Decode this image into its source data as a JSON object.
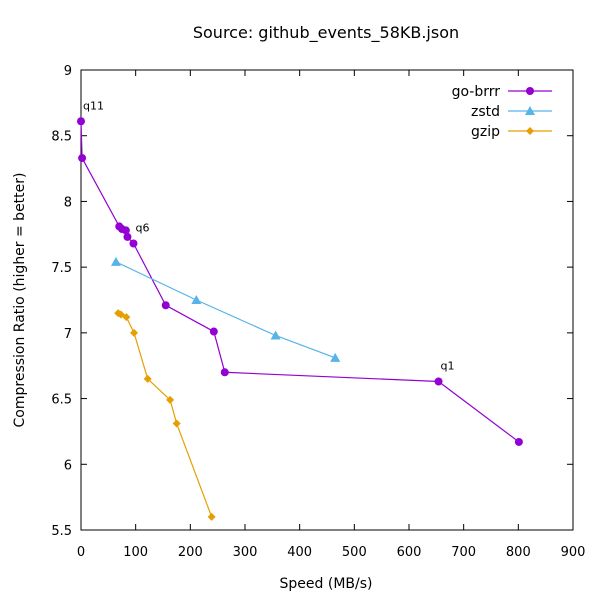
{
  "chart_data": {
    "type": "line",
    "title": "Source: github_events_58KB.json",
    "xlabel": "Speed (MB/s)",
    "ylabel": "Compression Ratio (higher = better)",
    "xlim": [
      0,
      900
    ],
    "ylim": [
      5.5,
      9
    ],
    "xticks": [
      "0",
      "100",
      "200",
      "300",
      "400",
      "500",
      "600",
      "700",
      "800",
      "900"
    ],
    "yticks": [
      "5.5",
      "6",
      "6.5",
      "7",
      "7.5",
      "8",
      "8.5",
      "9"
    ],
    "grid": false,
    "legend_position": "top-right",
    "series": [
      {
        "name": "go-brrr",
        "color": "#9400d3",
        "marker": "circle",
        "points": [
          {
            "x": 0,
            "y": 8.61
          },
          {
            "x": 2,
            "y": 8.33
          },
          {
            "x": 70,
            "y": 7.81
          },
          {
            "x": 75,
            "y": 7.79
          },
          {
            "x": 82,
            "y": 7.78
          },
          {
            "x": 85,
            "y": 7.73
          },
          {
            "x": 96,
            "y": 7.68
          },
          {
            "x": 155,
            "y": 7.21
          },
          {
            "x": 243,
            "y": 7.01
          },
          {
            "x": 263,
            "y": 6.7
          },
          {
            "x": 654,
            "y": 6.63
          },
          {
            "x": 801,
            "y": 6.17
          }
        ]
      },
      {
        "name": "zstd",
        "color": "#56b4e9",
        "marker": "triangle",
        "points": [
          {
            "x": 64,
            "y": 7.54
          },
          {
            "x": 211,
            "y": 7.25
          },
          {
            "x": 356,
            "y": 6.98
          },
          {
            "x": 465,
            "y": 6.81
          }
        ]
      },
      {
        "name": "gzip",
        "color": "#e69f00",
        "marker": "diamond",
        "points": [
          {
            "x": 68,
            "y": 7.15
          },
          {
            "x": 73,
            "y": 7.14
          },
          {
            "x": 83,
            "y": 7.12
          },
          {
            "x": 97,
            "y": 7.0
          },
          {
            "x": 122,
            "y": 6.65
          },
          {
            "x": 163,
            "y": 6.49
          },
          {
            "x": 175,
            "y": 6.31
          },
          {
            "x": 239,
            "y": 5.6
          }
        ]
      }
    ],
    "annotations": [
      {
        "text": "q11",
        "x": 0,
        "y": 8.61
      },
      {
        "text": "q6",
        "x": 96,
        "y": 7.68
      },
      {
        "text": "q1",
        "x": 654,
        "y": 6.63
      }
    ]
  }
}
